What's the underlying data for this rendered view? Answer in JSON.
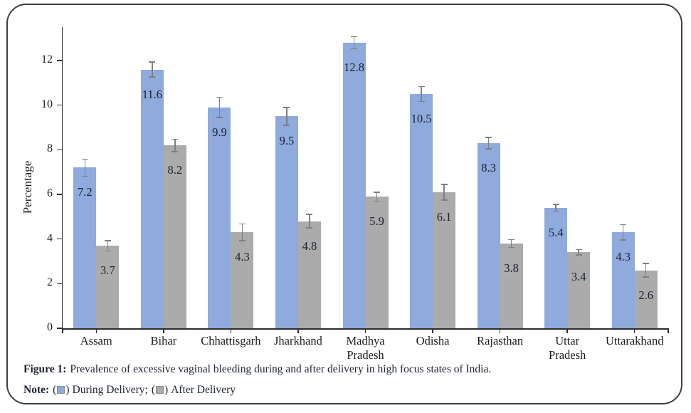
{
  "figure": {
    "label": "Figure 1:",
    "text": "Prevalence of excessive vaginal bleeding during and after delivery in high focus states of India."
  },
  "note": {
    "prefix": "Note:",
    "open": "(",
    "close": ")",
    "separator": ";"
  },
  "chart_data": {
    "type": "bar",
    "title": "",
    "xlabel": "",
    "ylabel": "Percentage",
    "categories": [
      "Assam",
      "Bihar",
      "Chhattisgarh",
      "Jharkhand",
      "Madhya Pradesh",
      "Odisha",
      "Rajasthan",
      "Uttar Pradesh",
      "Uttarakhand"
    ],
    "category_lines": [
      [
        "Assam"
      ],
      [
        "Bihar"
      ],
      [
        "Chhattisgarh"
      ],
      [
        "Jharkhand"
      ],
      [
        "Madhya",
        "Pradesh"
      ],
      [
        "Odisha"
      ],
      [
        "Rajasthan"
      ],
      [
        "Uttar",
        "Pradesh"
      ],
      [
        "Uttarakhand"
      ]
    ],
    "series": [
      {
        "name": "During Delivery",
        "color": "#8FAADC",
        "values": [
          7.2,
          11.6,
          9.9,
          9.5,
          12.8,
          10.5,
          8.3,
          5.4,
          4.3
        ],
        "errors": [
          0.38,
          0.33,
          0.45,
          0.4,
          0.27,
          0.33,
          0.25,
          0.15,
          0.35
        ]
      },
      {
        "name": "After Delivery",
        "color": "#ACABAB",
        "values": [
          3.7,
          8.2,
          4.3,
          4.8,
          5.9,
          6.1,
          3.8,
          3.4,
          2.6
        ],
        "errors": [
          0.23,
          0.28,
          0.37,
          0.3,
          0.2,
          0.35,
          0.18,
          0.12,
          0.3
        ]
      }
    ],
    "yticks": [
      0,
      2,
      4,
      6,
      8,
      10,
      12
    ],
    "ylim": [
      0,
      13.5
    ],
    "grid": false,
    "error_bars": true,
    "value_labels": "inside-top",
    "legend_position": "note-below-chart",
    "colors": {
      "axis": "#2e2e2e",
      "error_bar": "#7f7f7f",
      "value_label_text": "#18222f",
      "caption_text": "#1e2530"
    }
  }
}
